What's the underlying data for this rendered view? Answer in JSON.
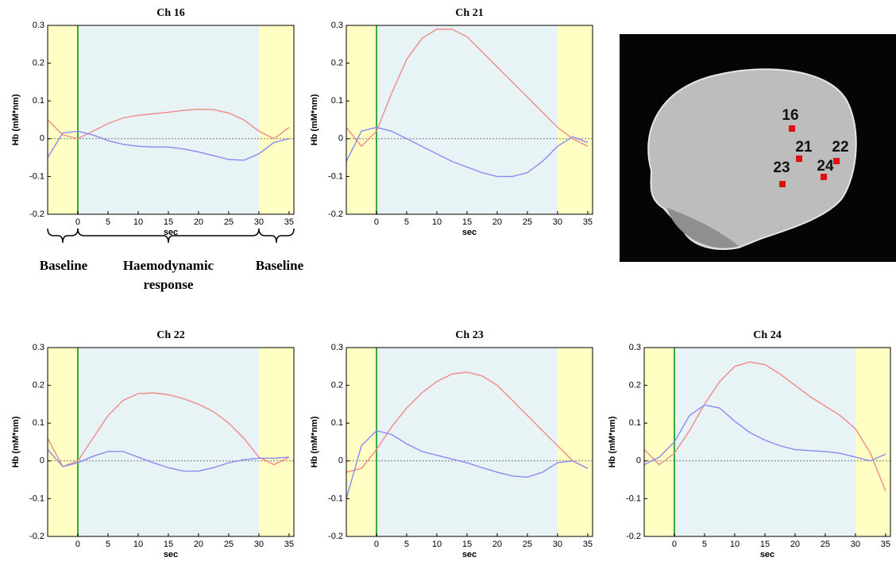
{
  "chart_data": [
    {
      "type": "line",
      "title": "Ch 16",
      "x_label": "sec",
      "y_label": "Hb (mM*nm)",
      "xlim": [
        -5,
        35.8
      ],
      "ylim": [
        -0.2,
        0.3
      ],
      "xticks": [
        0,
        5,
        10,
        15,
        20,
        25,
        30,
        35
      ],
      "yticks": [
        -0.2,
        -0.1,
        0,
        0.1,
        0.2,
        0.3
      ],
      "spans": [
        {
          "from": -5,
          "to": 0,
          "color": "#ffffc4"
        },
        {
          "from": 0,
          "to": 30,
          "color": "#e8f3f5"
        },
        {
          "from": 30,
          "to": 35.8,
          "color": "#ffffc4"
        }
      ],
      "onset": 0,
      "onset_color": "#3aa83a",
      "zero_line": true,
      "annotations": [
        "Baseline",
        "Haemodynamic response",
        "Baseline"
      ],
      "x": [
        -5,
        -2.5,
        0,
        2.5,
        5,
        7.5,
        10,
        12.5,
        15,
        17.5,
        20,
        22.5,
        25,
        27.5,
        30,
        32.5,
        35
      ],
      "series": [
        {
          "color": "#f08a8a",
          "values": [
            0.05,
            0.01,
            0.0,
            0.02,
            0.04,
            0.055,
            0.062,
            0.066,
            0.07,
            0.075,
            0.078,
            0.077,
            0.068,
            0.05,
            0.02,
            0.0,
            0.03
          ]
        },
        {
          "color": "#8a8af0",
          "values": [
            -0.05,
            0.015,
            0.02,
            0.01,
            -0.005,
            -0.015,
            -0.02,
            -0.022,
            -0.022,
            -0.027,
            -0.035,
            -0.045,
            -0.055,
            -0.057,
            -0.04,
            -0.01,
            0.0
          ]
        }
      ]
    },
    {
      "type": "line",
      "title": "Ch 21",
      "x_label": "sec",
      "y_label": "Hb (mM*nm)",
      "xlim": [
        -5,
        35.8
      ],
      "ylim": [
        -0.2,
        0.3
      ],
      "xticks": [
        0,
        5,
        10,
        15,
        20,
        25,
        30,
        35
      ],
      "yticks": [
        -0.2,
        -0.1,
        0,
        0.1,
        0.2,
        0.3
      ],
      "spans": [
        {
          "from": -5,
          "to": 0,
          "color": "#ffffc4"
        },
        {
          "from": 0,
          "to": 30,
          "color": "#e8f3f5"
        },
        {
          "from": 30,
          "to": 35.8,
          "color": "#ffffc4"
        }
      ],
      "onset": 0,
      "onset_color": "#3aa83a",
      "zero_line": true,
      "x": [
        -5,
        -2.5,
        0,
        2.5,
        5,
        7.5,
        10,
        12.5,
        15,
        17.5,
        20,
        22.5,
        25,
        27.5,
        30,
        32.5,
        35
      ],
      "series": [
        {
          "color": "#f08a8a",
          "values": [
            0.03,
            -0.02,
            0.02,
            0.12,
            0.21,
            0.265,
            0.29,
            0.29,
            0.27,
            0.23,
            0.19,
            0.15,
            0.11,
            0.07,
            0.03,
            0.0,
            -0.02
          ]
        },
        {
          "color": "#8a8af0",
          "values": [
            -0.06,
            0.02,
            0.03,
            0.02,
            0.0,
            -0.02,
            -0.04,
            -0.06,
            -0.075,
            -0.09,
            -0.1,
            -0.1,
            -0.09,
            -0.06,
            -0.02,
            0.005,
            -0.01
          ]
        }
      ]
    },
    {
      "type": "line",
      "title": "Ch 22",
      "x_label": "sec",
      "y_label": "Hb (mM*nm)",
      "xlim": [
        -5,
        35.8
      ],
      "ylim": [
        -0.2,
        0.3
      ],
      "xticks": [
        0,
        5,
        10,
        15,
        20,
        25,
        30,
        35
      ],
      "yticks": [
        -0.2,
        -0.1,
        0,
        0.1,
        0.2,
        0.3
      ],
      "spans": [
        {
          "from": -5,
          "to": 0,
          "color": "#ffffc4"
        },
        {
          "from": 0,
          "to": 30,
          "color": "#e8f3f5"
        },
        {
          "from": 30,
          "to": 35.8,
          "color": "#ffffc4"
        }
      ],
      "onset": 0,
      "onset_color": "#3aa83a",
      "zero_line": true,
      "x": [
        -5,
        -2.5,
        0,
        2.5,
        5,
        7.5,
        10,
        12.5,
        15,
        17.5,
        20,
        22.5,
        25,
        27.5,
        30,
        32.5,
        35
      ],
      "series": [
        {
          "color": "#f08a8a",
          "values": [
            0.06,
            -0.015,
            0.0,
            0.06,
            0.12,
            0.16,
            0.178,
            0.18,
            0.175,
            0.165,
            0.15,
            0.13,
            0.1,
            0.06,
            0.01,
            -0.01,
            0.01
          ]
        },
        {
          "color": "#8a8af0",
          "values": [
            0.03,
            -0.015,
            -0.005,
            0.012,
            0.025,
            0.025,
            0.01,
            -0.005,
            -0.018,
            -0.027,
            -0.027,
            -0.018,
            -0.005,
            0.003,
            0.007,
            0.007,
            0.01
          ]
        }
      ]
    },
    {
      "type": "line",
      "title": "Ch 23",
      "x_label": "sec",
      "y_label": "Hb (mM*nm)",
      "xlim": [
        -5,
        35.8
      ],
      "ylim": [
        -0.2,
        0.3
      ],
      "xticks": [
        0,
        5,
        10,
        15,
        20,
        25,
        30,
        35
      ],
      "yticks": [
        -0.2,
        -0.1,
        0,
        0.1,
        0.2,
        0.3
      ],
      "spans": [
        {
          "from": -5,
          "to": 0,
          "color": "#ffffc4"
        },
        {
          "from": 0,
          "to": 30,
          "color": "#e8f3f5"
        },
        {
          "from": 30,
          "to": 35.8,
          "color": "#ffffc4"
        }
      ],
      "onset": 0,
      "onset_color": "#3aa83a",
      "zero_line": true,
      "x": [
        -5,
        -2.5,
        0,
        2.5,
        5,
        7.5,
        10,
        12.5,
        15,
        17.5,
        20,
        22.5,
        25,
        27.5,
        30,
        32.5,
        35
      ],
      "series": [
        {
          "color": "#f08a8a",
          "values": [
            -0.03,
            -0.02,
            0.03,
            0.09,
            0.14,
            0.18,
            0.21,
            0.23,
            0.235,
            0.225,
            0.2,
            0.16,
            0.12,
            0.08,
            0.04,
            0.0,
            -0.02
          ]
        },
        {
          "color": "#8a8af0",
          "values": [
            -0.1,
            0.04,
            0.08,
            0.07,
            0.045,
            0.025,
            0.015,
            0.005,
            -0.005,
            -0.018,
            -0.03,
            -0.04,
            -0.043,
            -0.03,
            -0.005,
            0.0,
            -0.02
          ]
        }
      ]
    },
    {
      "type": "line",
      "title": "Ch 24",
      "x_label": "sec",
      "y_label": "Hb (mM*nm)",
      "xlim": [
        -5,
        35.8
      ],
      "ylim": [
        -0.2,
        0.3
      ],
      "xticks": [
        0,
        5,
        10,
        15,
        20,
        25,
        30,
        35
      ],
      "yticks": [
        -0.2,
        -0.1,
        0,
        0.1,
        0.2,
        0.3
      ],
      "spans": [
        {
          "from": -5,
          "to": 0,
          "color": "#ffffc4"
        },
        {
          "from": 0,
          "to": 30,
          "color": "#e8f3f5"
        },
        {
          "from": 30,
          "to": 35.8,
          "color": "#ffffc4"
        }
      ],
      "onset": 0,
      "onset_color": "#3aa83a",
      "zero_line": true,
      "x": [
        -5,
        -2.5,
        0,
        2.5,
        5,
        7.5,
        10,
        12.5,
        15,
        17.5,
        20,
        22.5,
        25,
        27.5,
        30,
        32.5,
        35
      ],
      "series": [
        {
          "color": "#f08a8a",
          "values": [
            0.03,
            -0.01,
            0.02,
            0.08,
            0.15,
            0.21,
            0.25,
            0.262,
            0.255,
            0.23,
            0.2,
            0.17,
            0.145,
            0.12,
            0.085,
            0.02,
            -0.08
          ]
        },
        {
          "color": "#8a8af0",
          "values": [
            -0.01,
            0.01,
            0.05,
            0.12,
            0.148,
            0.14,
            0.105,
            0.075,
            0.055,
            0.04,
            0.03,
            0.027,
            0.025,
            0.02,
            0.01,
            0.0,
            0.018
          ]
        }
      ]
    }
  ],
  "brain_image": {
    "channel_labels": [
      "16",
      "21",
      "22",
      "23",
      "24"
    ],
    "marker_color": "#e01010"
  }
}
